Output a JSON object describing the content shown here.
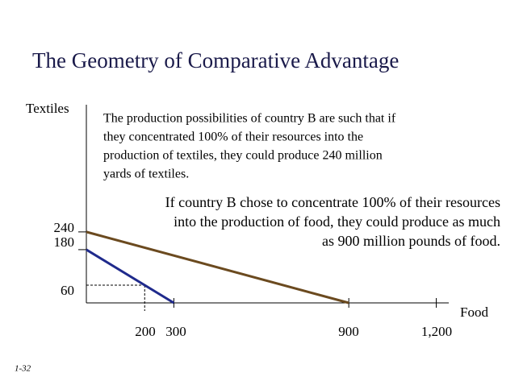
{
  "chart_data": {
    "type": "line",
    "title": "The Geometry of Comparative Advantage",
    "y_label": "Textiles",
    "x_label": "Food",
    "xlim": [
      0,
      1240
    ],
    "ylim": [
      0,
      670
    ],
    "xticks": [
      200,
      300,
      900,
      {
        "value": 1200,
        "label": "1,200"
      }
    ],
    "yticks": [
      240,
      180,
      60
    ],
    "series": [
      {
        "color": "#6b4a1f",
        "x": [
          0,
          900
        ],
        "values": [
          240,
          0
        ]
      },
      {
        "color": "#1f2a8c",
        "x": [
          0,
          300
        ],
        "values": [
          180,
          0
        ]
      }
    ],
    "annotations": [
      [
        "The production possibilities of country B are such that if",
        "they concentrated 100% of their resources into the",
        "production of textiles, they could produce 240 million",
        "yards of textiles."
      ],
      [
        "If country B chose to concentrate 100% of their resources",
        "into the production of food, they could produce as much",
        "as 900 million pounds of food."
      ]
    ],
    "footer": "1-32"
  }
}
